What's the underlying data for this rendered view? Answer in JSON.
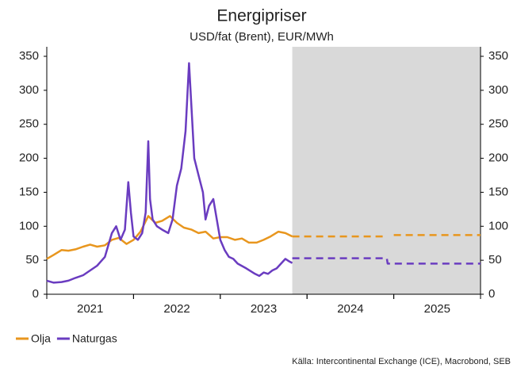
{
  "chart_data": {
    "type": "line",
    "title": "Energipriser",
    "subtitle": "USD/fat (Brent), EUR/MWh",
    "source": "Källa: Intercontinental Exchange (ICE), Macrobond, SEB",
    "xlim": [
      2021,
      2026
    ],
    "xticks": [
      {
        "value": 2021.5,
        "label": "2021"
      },
      {
        "value": 2022.5,
        "label": "2022"
      },
      {
        "value": 2023.5,
        "label": "2023"
      },
      {
        "value": 2024.5,
        "label": "2024"
      },
      {
        "value": 2025.5,
        "label": "2025"
      }
    ],
    "ylim": [
      0,
      350
    ],
    "yticks": [
      0,
      50,
      100,
      150,
      200,
      250,
      300,
      350
    ],
    "y2lim": [
      0,
      350
    ],
    "y2ticks": [
      0,
      50,
      100,
      150,
      200,
      250,
      300,
      350
    ],
    "shaded_region": [
      2023.83,
      2026
    ],
    "shade_color": "#d9d9d9",
    "legend": "bottom-left",
    "series": [
      {
        "name": "Olja",
        "color": "#e8961e",
        "x": [
          2021.0,
          2021.08,
          2021.17,
          2021.25,
          2021.33,
          2021.42,
          2021.5,
          2021.58,
          2021.67,
          2021.75,
          2021.83,
          2021.92,
          2022.0,
          2022.08,
          2022.17,
          2022.25,
          2022.33,
          2022.42,
          2022.5,
          2022.58,
          2022.67,
          2022.75,
          2022.83,
          2022.92,
          2023.0,
          2023.08,
          2023.17,
          2023.25,
          2023.33,
          2023.42,
          2023.5,
          2023.58,
          2023.67,
          2023.75,
          2023.83
        ],
        "values": [
          52,
          58,
          65,
          64,
          66,
          70,
          73,
          70,
          72,
          80,
          83,
          74,
          80,
          92,
          115,
          105,
          108,
          115,
          105,
          98,
          95,
          90,
          92,
          82,
          84,
          84,
          80,
          82,
          76,
          76,
          80,
          85,
          92,
          90,
          85
        ],
        "forecast_x": [
          2023.83,
          2024.92,
          null,
          2025.0,
          2026.0
        ],
        "forecast_values": [
          85,
          85,
          null,
          87,
          87
        ]
      },
      {
        "name": "Naturgas",
        "color": "#6a3cc0",
        "x": [
          2021.0,
          2021.08,
          2021.17,
          2021.25,
          2021.33,
          2021.42,
          2021.5,
          2021.58,
          2021.67,
          2021.75,
          2021.8,
          2021.85,
          2021.9,
          2021.94,
          2021.97,
          2022.0,
          2022.05,
          2022.1,
          2022.14,
          2022.17,
          2022.19,
          2022.22,
          2022.27,
          2022.33,
          2022.4,
          2022.45,
          2022.5,
          2022.55,
          2022.6,
          2022.64,
          2022.67,
          2022.7,
          2022.75,
          2022.8,
          2022.83,
          2022.87,
          2022.92,
          2022.96,
          2023.0,
          2023.05,
          2023.1,
          2023.15,
          2023.2,
          2023.3,
          2023.4,
          2023.45,
          2023.5,
          2023.55,
          2023.6,
          2023.65,
          2023.7,
          2023.75,
          2023.8,
          2023.83
        ],
        "values": [
          20,
          17,
          18,
          20,
          24,
          28,
          35,
          42,
          55,
          90,
          100,
          80,
          95,
          165,
          120,
          85,
          80,
          90,
          120,
          225,
          140,
          110,
          100,
          95,
          90,
          110,
          160,
          185,
          240,
          340,
          270,
          200,
          175,
          150,
          110,
          130,
          140,
          110,
          80,
          65,
          55,
          52,
          45,
          38,
          30,
          27,
          32,
          30,
          35,
          38,
          45,
          52,
          48,
          46
        ],
        "forecast_x": [
          2023.83,
          2024.92,
          2024.93,
          2026.0
        ],
        "forecast_values": [
          53,
          53,
          45,
          45
        ]
      }
    ]
  }
}
